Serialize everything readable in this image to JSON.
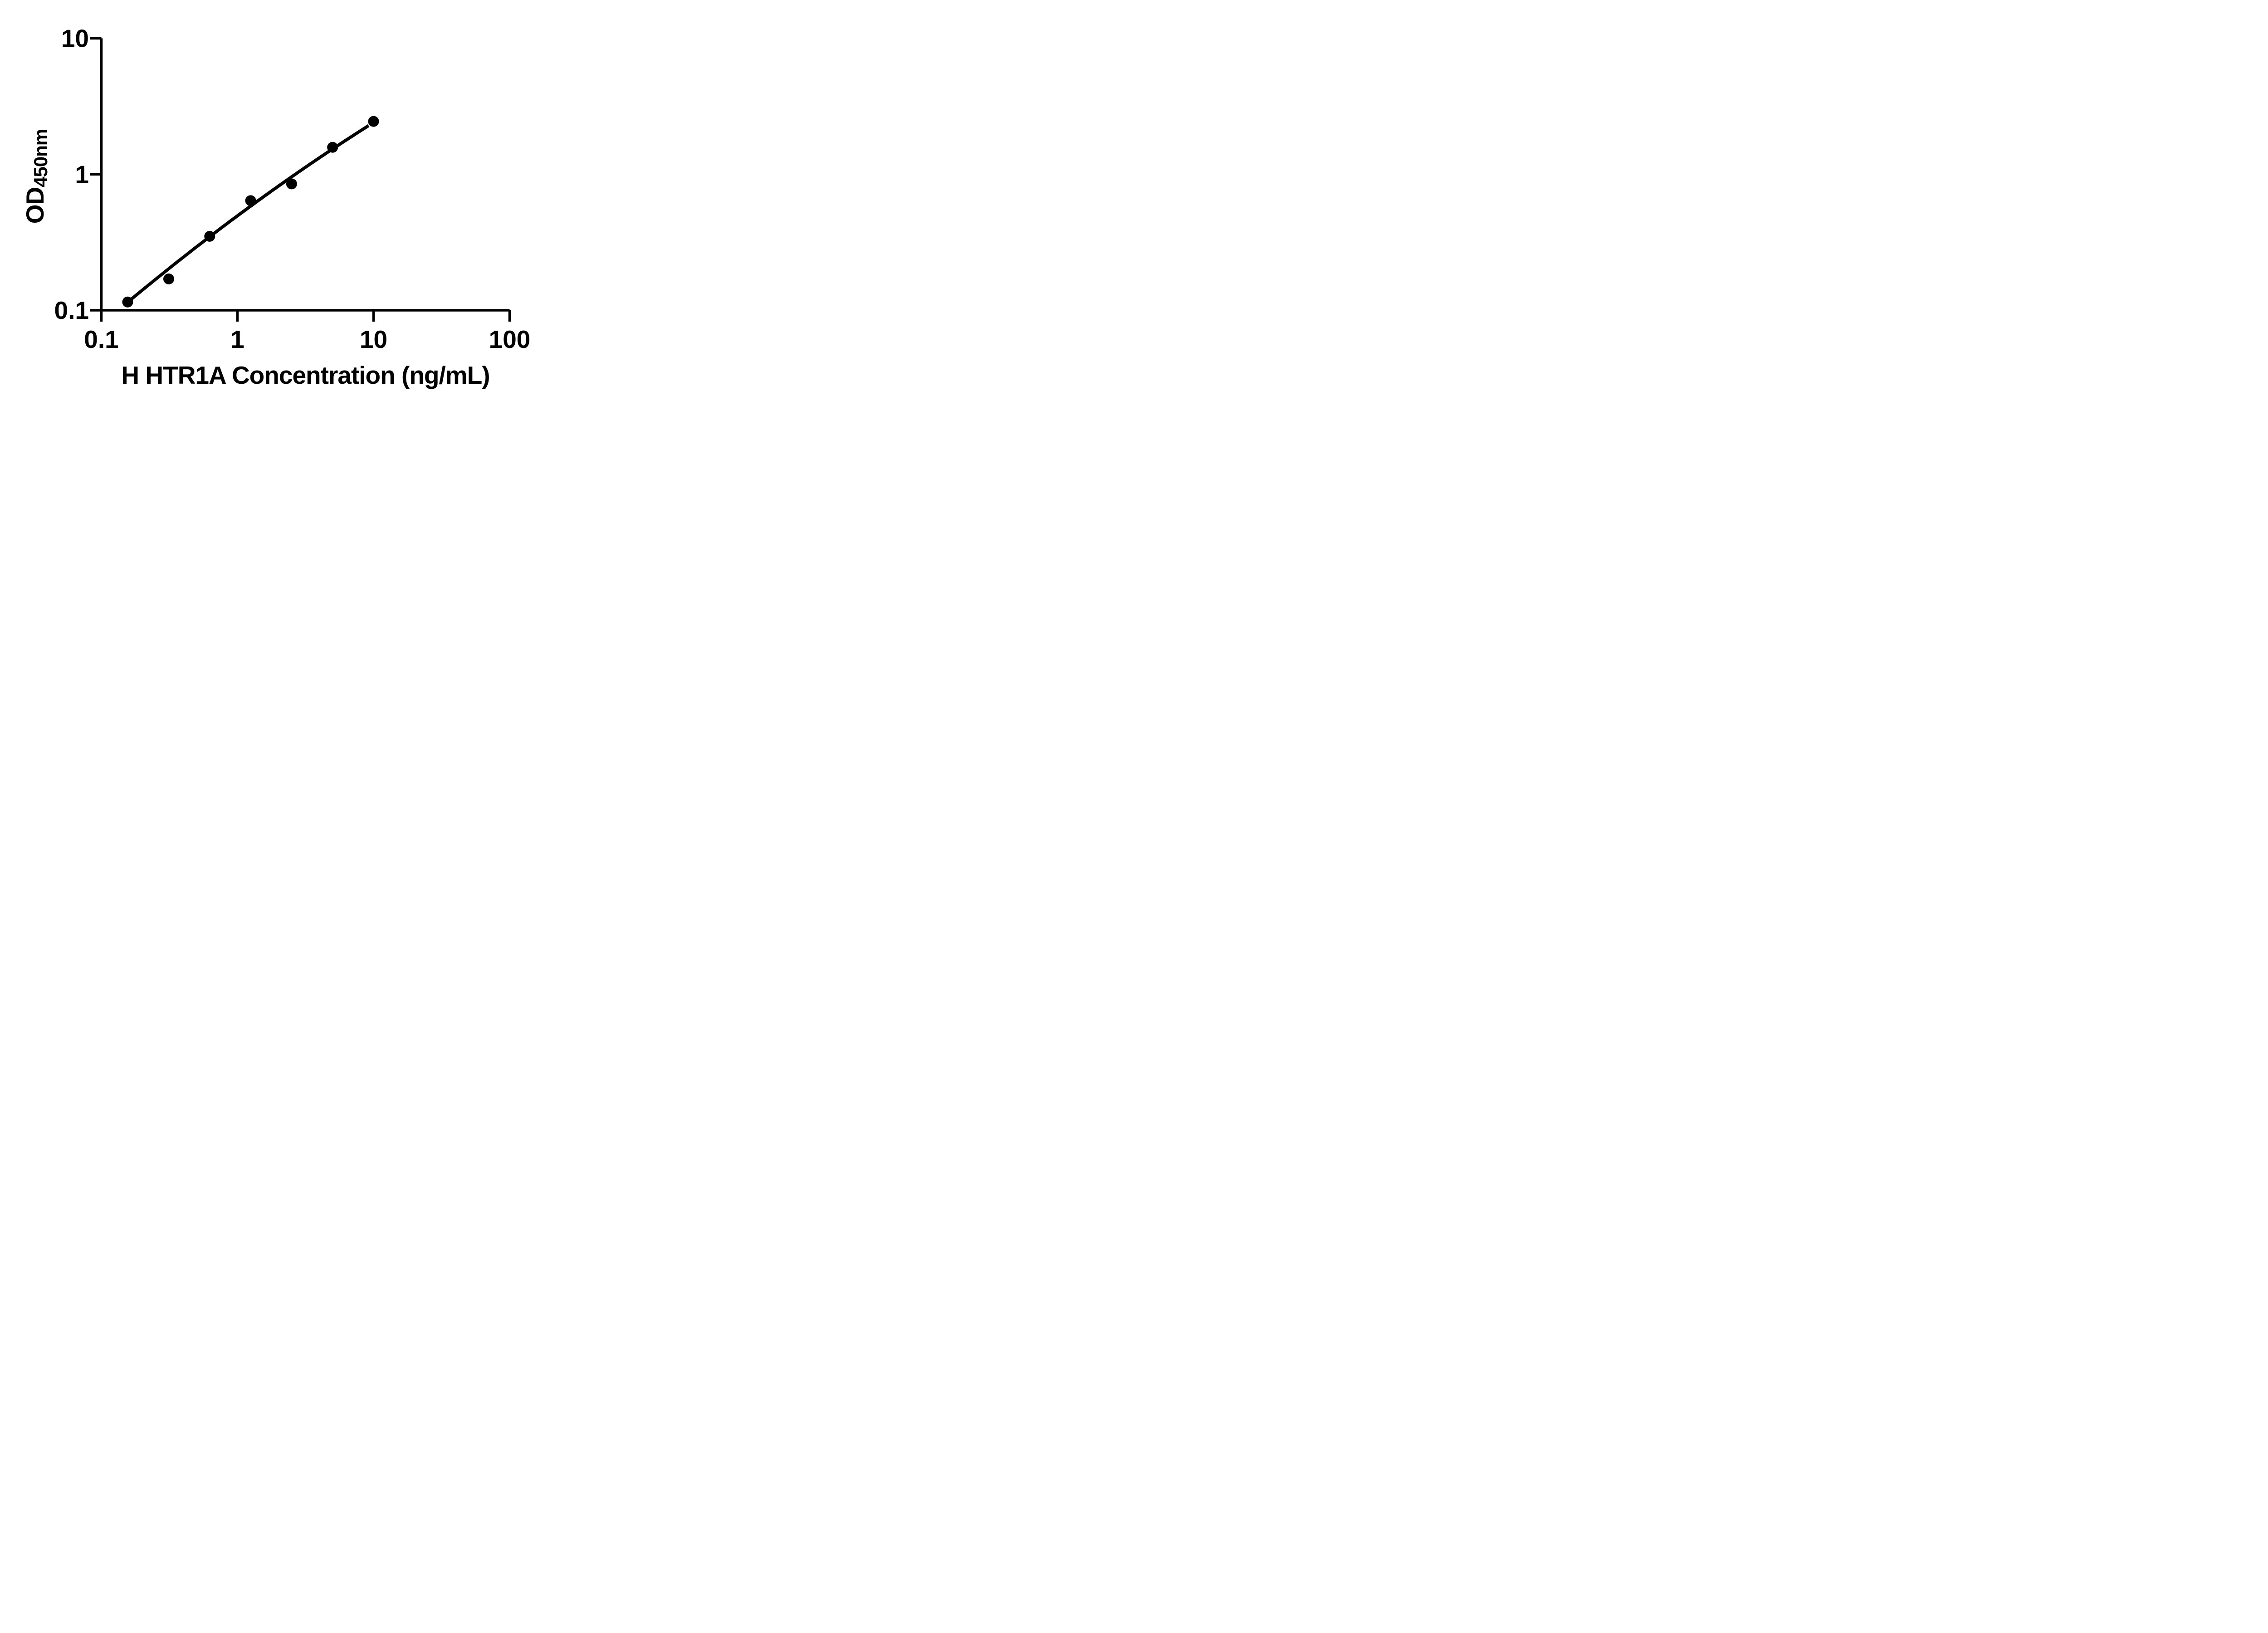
{
  "figure": {
    "background": "#ffffff",
    "ink_color": "#000000"
  },
  "y_axis": {
    "title_main": "OD",
    "title_sub": "450nm",
    "scale": "log",
    "min": 0.1,
    "max": 10,
    "ticks": [
      {
        "value": 10,
        "label": "10"
      },
      {
        "value": 1,
        "label": "1"
      },
      {
        "value": 0.1,
        "label": "0.1"
      }
    ]
  },
  "x_axis": {
    "title": "H HTR1A Concentration (ng/mL)",
    "scale": "log",
    "min": 0.1,
    "max": 100,
    "ticks": [
      {
        "value": 0.1,
        "label": "0.1"
      },
      {
        "value": 1,
        "label": "1"
      },
      {
        "value": 10,
        "label": "10"
      },
      {
        "value": 100,
        "label": "100"
      }
    ]
  },
  "chart_data": {
    "type": "scatter",
    "title": "",
    "xlabel": "H HTR1A Concentration (ng/mL)",
    "ylabel": "OD450nm",
    "x_scale": "log",
    "y_scale": "log",
    "xlim": [
      0.1,
      100
    ],
    "ylim": [
      0.1,
      10
    ],
    "grid": false,
    "legend": null,
    "marker": {
      "shape": "circle",
      "color": "#000000"
    },
    "points": [
      {
        "x": 0.156,
        "y": 0.115
      },
      {
        "x": 0.3125,
        "y": 0.17
      },
      {
        "x": 0.625,
        "y": 0.35
      },
      {
        "x": 1.25,
        "y": 0.64
      },
      {
        "x": 2.5,
        "y": 0.85
      },
      {
        "x": 5,
        "y": 1.58
      },
      {
        "x": 10,
        "y": 2.45
      }
    ],
    "fit_curve": {
      "color": "#000000",
      "start": {
        "x": 0.16,
        "y": 0.117
      },
      "mid": {
        "x": 1.21,
        "y": 0.57
      },
      "end": {
        "x": 9.2,
        "y": 2.28
      }
    }
  }
}
